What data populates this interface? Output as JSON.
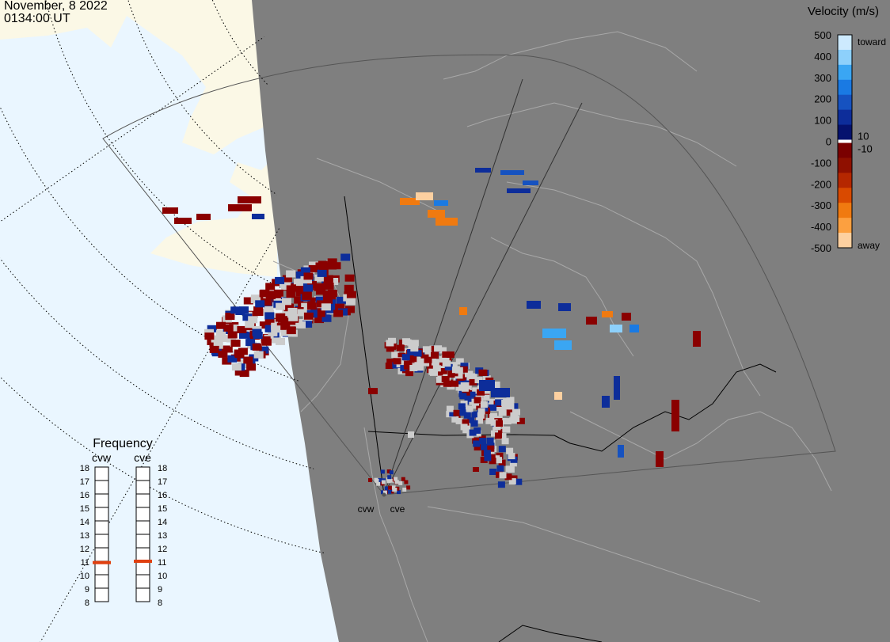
{
  "header": {
    "date": "November, 8 2022",
    "time": "0134:00 UT"
  },
  "colorbar": {
    "title": "Velocity (m/s)",
    "ticks": [
      "500",
      "400",
      "300",
      "200",
      "100",
      "0",
      "-100",
      "-200",
      "-300",
      "-400",
      "-500"
    ],
    "near_zero_pos": "10",
    "near_zero_neg": "-10",
    "toward_label": "toward",
    "away_label": "away",
    "colors_toward": [
      "#cdeafe",
      "#8dd0fb",
      "#3aa6f3",
      "#1a7ae3",
      "#1652c0",
      "#0d2d9a",
      "#05126e"
    ],
    "colors_away": [
      "#7a0000",
      "#8f1000",
      "#b52700",
      "#d94a00",
      "#f07a10",
      "#fca040",
      "#fdd0a0"
    ]
  },
  "frequency_panel": {
    "title": "Frequency",
    "radars": [
      "cvw",
      "cve"
    ],
    "levels": [
      "18",
      "17",
      "16",
      "15",
      "14",
      "13",
      "12",
      "11",
      "10",
      "9",
      "8"
    ],
    "cvw_freq_mhz": 10.9,
    "cve_freq_mhz": 11.0,
    "marker_color": "#e04010"
  },
  "map": {
    "radar_labels": [
      "cvw",
      "cve"
    ],
    "colors": {
      "night": "#7f7f7f",
      "day_ocean": "#eaf6ff",
      "day_land": "#fbf8e6",
      "ground_scatter": "#cccccc",
      "coast_line": "#a8a8a8",
      "border_line": "#000000"
    }
  }
}
